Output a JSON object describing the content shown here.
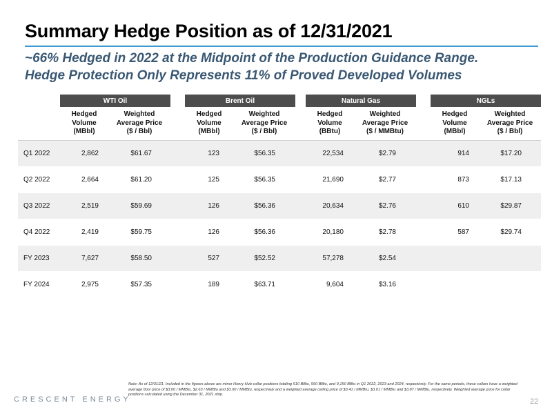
{
  "title": "Summary Hedge Position as of 12/31/2021",
  "subtitle_line1": "~66% Hedged in 2022 at the Midpoint of the Production Guidance Range.",
  "subtitle_line2": "Hedge Protection Only Represents 11% of Proved Developed Volumes",
  "groups": [
    {
      "name": "WTI Oil",
      "vol_head": [
        "Hedged",
        "Volume",
        "(MBbl)"
      ],
      "price_head": [
        "Weighted",
        "Average Price",
        "($ / Bbl)"
      ]
    },
    {
      "name": "Brent Oil",
      "vol_head": [
        "Hedged",
        "Volume",
        "(MBbl)"
      ],
      "price_head": [
        "Weighted",
        "Average Price",
        "($ / Bbl)"
      ]
    },
    {
      "name": "Natural Gas",
      "vol_head": [
        "Hedged",
        "Volume",
        "(BBtu)"
      ],
      "price_head": [
        "Weighted",
        "Average Price",
        "($ / MMBtu)"
      ]
    },
    {
      "name": "NGLs",
      "vol_head": [
        "Hedged",
        "Volume",
        "(MBbl)"
      ],
      "price_head": [
        "Weighted",
        "Average Price",
        "($ / Bbl)"
      ]
    }
  ],
  "rows": [
    {
      "period": "Q1 2022",
      "cells": [
        "2,862",
        "$61.67",
        "123",
        "$56.35",
        "22,534",
        "$2.79",
        "914",
        "$17.20"
      ]
    },
    {
      "period": "Q2 2022",
      "cells": [
        "2,664",
        "$61.20",
        "125",
        "$56.35",
        "21,690",
        "$2.77",
        "873",
        "$17.13"
      ]
    },
    {
      "period": "Q3 2022",
      "cells": [
        "2,519",
        "$59.69",
        "126",
        "$56.36",
        "20,634",
        "$2.76",
        "610",
        "$29.87"
      ]
    },
    {
      "period": "Q4 2022",
      "cells": [
        "2,419",
        "$59.75",
        "126",
        "$56.36",
        "20,180",
        "$2.78",
        "587",
        "$29.74"
      ]
    },
    {
      "period": "FY 2023",
      "cells": [
        "7,627",
        "$58.50",
        "527",
        "$52.52",
        "57,278",
        "$2.54",
        "",
        ""
      ]
    },
    {
      "period": "FY 2024",
      "cells": [
        "2,975",
        "$57.35",
        "189",
        "$63.71",
        "9,604",
        "$3.16",
        "",
        ""
      ]
    }
  ],
  "footnote": "Note: As of 12/31/21. Included in the figures above are minor Henry Hub collar positions totaling 510 BBtu, 550 BBtu, and 9,150 BBtu in Q1 2022, 2023 and 2024, respectively. For the same periods, these collars have a weighted average floor price of $3.00 / MMBtu, $2.63 / MMBtu and $3.00 / MMBtu, respectively and a weighted average ceiling price of $3.41 / MMBtu, $3.01 / MMBtu and $3.87 / MMBtu, respectively. Weighted average price for collar positions calculated using the December 31, 2021 strip.",
  "company": "CRESCENT ENERGY",
  "page_number": "22",
  "colors": {
    "title_rule": "#3b9ad0",
    "subtitle": "#3a5873",
    "group_header_bg": "#4d4d4d",
    "row_shade": "#efefef"
  }
}
